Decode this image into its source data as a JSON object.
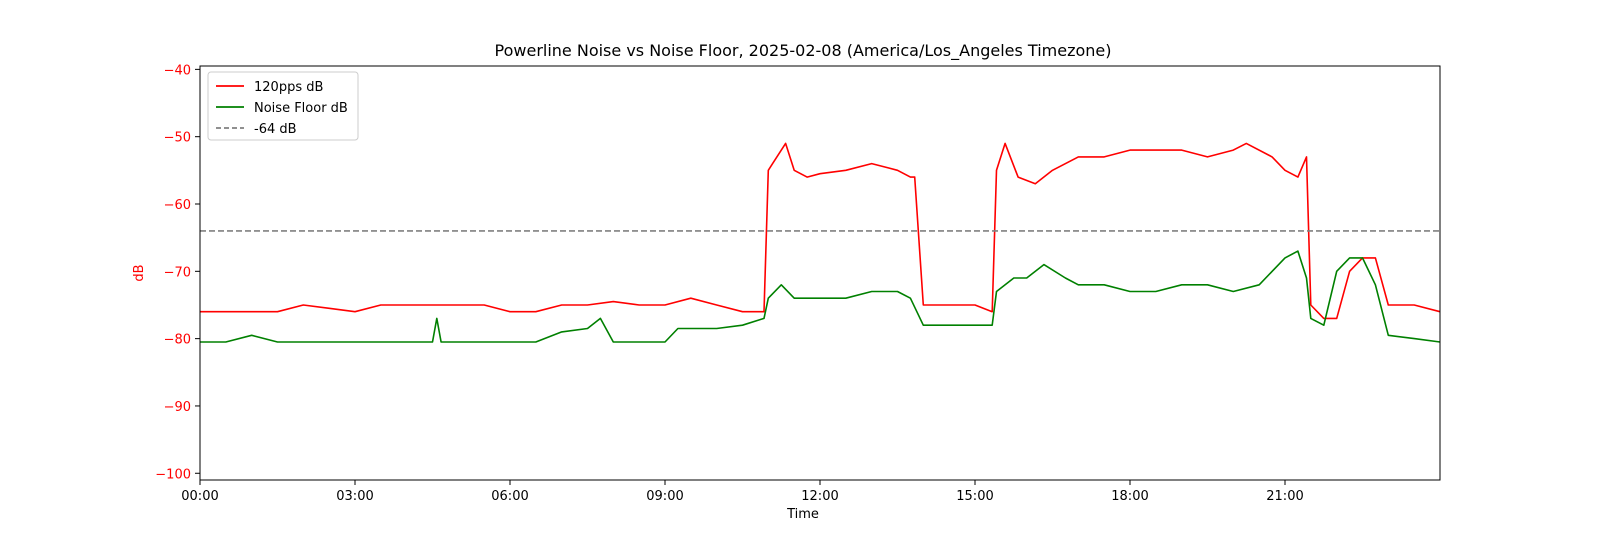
{
  "chart_data": {
    "type": "line",
    "title": "Powerline Noise vs Noise Floor, 2025-02-08 (America/Los_Angeles Timezone)",
    "xlabel": "Time",
    "ylabel": "dB",
    "xlim": [
      "00:00",
      "24:00"
    ],
    "ylim": [
      -101,
      -39.5
    ],
    "x_ticks": [
      "00:00",
      "03:00",
      "06:00",
      "09:00",
      "12:00",
      "15:00",
      "18:00",
      "21:00"
    ],
    "y_ticks": [
      -100,
      -90,
      -80,
      -70,
      -60,
      -50,
      -40
    ],
    "y_tick_labels": [
      "−100",
      "−90",
      "−80",
      "−70",
      "−60",
      "−50",
      "−40"
    ],
    "grid": false,
    "legend_position": "top-left",
    "colors": {
      "pps": "#ff0000",
      "floor": "#008000",
      "threshold": "#808080",
      "ylabel": "#ff0000"
    },
    "series": [
      {
        "name": "120pps dB",
        "color": "#ff0000",
        "x": [
          "00:00",
          "00:30",
          "01:00",
          "01:30",
          "02:00",
          "02:30",
          "03:00",
          "03:30",
          "04:00",
          "04:30",
          "05:00",
          "05:30",
          "06:00",
          "06:30",
          "07:00",
          "07:30",
          "08:00",
          "08:30",
          "09:00",
          "09:30",
          "10:00",
          "10:30",
          "10:55",
          "11:00",
          "11:05",
          "11:20",
          "11:30",
          "11:45",
          "12:00",
          "12:30",
          "13:00",
          "13:30",
          "13:45",
          "13:50",
          "14:00",
          "14:30",
          "15:00",
          "15:20",
          "15:25",
          "15:35",
          "15:50",
          "16:10",
          "16:30",
          "17:00",
          "17:30",
          "18:00",
          "18:30",
          "19:00",
          "19:30",
          "20:00",
          "20:15",
          "20:45",
          "21:00",
          "21:15",
          "21:25",
          "21:30",
          "21:45",
          "22:00",
          "22:15",
          "22:30",
          "22:45",
          "23:00",
          "23:30",
          "24:00"
        ],
        "values": [
          -76,
          -76,
          -76,
          -76,
          -75,
          -75.5,
          -76,
          -75,
          -75,
          -75,
          -75,
          -75,
          -76,
          -76,
          -75,
          -75,
          -74.5,
          -75,
          -75,
          -74,
          -75,
          -76,
          -76,
          -55,
          -54,
          -51,
          -55,
          -56,
          -55.5,
          -55,
          -54,
          -55,
          -56,
          -56,
          -75,
          -75,
          -75,
          -76,
          -55,
          -51,
          -56,
          -57,
          -55,
          -53,
          -53,
          -52,
          -52,
          -52,
          -53,
          -52,
          -51,
          -53,
          -55,
          -56,
          -53,
          -75,
          -77,
          -77,
          -70,
          -68,
          -68,
          -75,
          -75,
          -76
        ]
      },
      {
        "name": "Noise Floor dB",
        "color": "#008000",
        "x": [
          "00:00",
          "00:30",
          "01:00",
          "01:30",
          "02:00",
          "02:30",
          "03:00",
          "03:30",
          "04:00",
          "04:30",
          "04:35",
          "04:40",
          "05:00",
          "05:30",
          "06:00",
          "06:30",
          "07:00",
          "07:30",
          "07:45",
          "08:00",
          "08:30",
          "09:00",
          "09:15",
          "09:45",
          "10:00",
          "10:30",
          "10:55",
          "11:00",
          "11:15",
          "11:30",
          "12:00",
          "12:30",
          "13:00",
          "13:30",
          "13:45",
          "14:00",
          "14:30",
          "15:00",
          "15:20",
          "15:25",
          "15:45",
          "16:00",
          "16:20",
          "16:45",
          "17:00",
          "17:30",
          "18:00",
          "18:30",
          "19:00",
          "19:30",
          "20:00",
          "20:30",
          "21:00",
          "21:15",
          "21:25",
          "21:30",
          "21:45",
          "22:00",
          "22:15",
          "22:30",
          "22:45",
          "23:00",
          "23:30",
          "24:00"
        ],
        "values": [
          -80.5,
          -80.5,
          -79.5,
          -80.5,
          -80.5,
          -80.5,
          -80.5,
          -80.5,
          -80.5,
          -80.5,
          -77,
          -80.5,
          -80.5,
          -80.5,
          -80.5,
          -80.5,
          -79,
          -78.5,
          -77,
          -80.5,
          -80.5,
          -80.5,
          -78.5,
          -78.5,
          -78.5,
          -78,
          -77,
          -74,
          -72,
          -74,
          -74,
          -74,
          -73,
          -73,
          -74,
          -78,
          -78,
          -78,
          -78,
          -73,
          -71,
          -71,
          -69,
          -71,
          -72,
          -72,
          -73,
          -73,
          -72,
          -72,
          -73,
          -72,
          -68,
          -67,
          -71,
          -77,
          -78,
          -70,
          -68,
          -68,
          -72,
          -79.5,
          -80,
          -80.5
        ]
      },
      {
        "name": "-64 dB",
        "color": "#808080",
        "constant": -64
      }
    ]
  }
}
